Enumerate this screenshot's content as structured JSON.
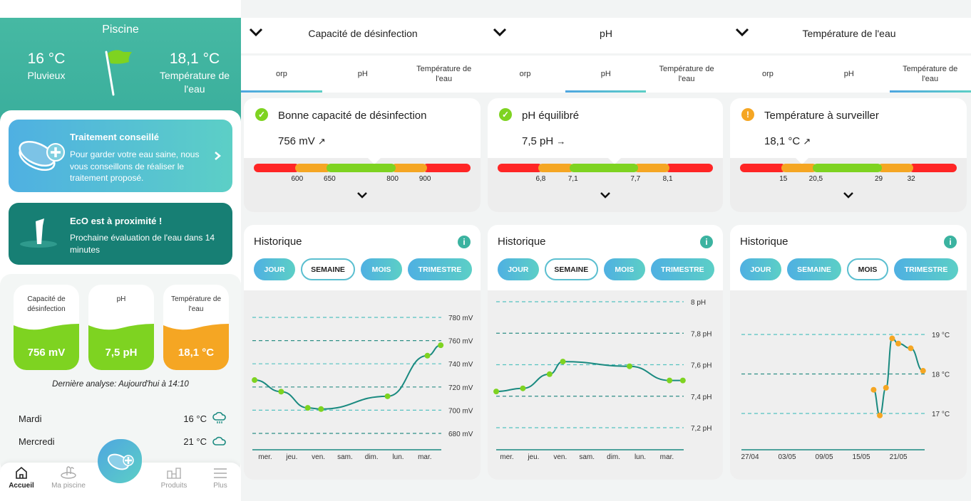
{
  "home": {
    "title": "Piscine",
    "weather_temp": "16 °C",
    "weather_desc": "Pluvieux",
    "water_temp": "18,1 °C",
    "water_temp_label": "Température de l'eau",
    "treatment": {
      "title": "Traitement conseillé",
      "text": "Pour garder votre eau saine, nous vous conseillons de réaliser le traitement proposé."
    },
    "eco": {
      "title": "EcO est à proximité !",
      "text": "Prochaine évaluation de l'eau dans 14 minutes"
    },
    "tiles": [
      {
        "label": "Capacité de désinfection",
        "value": "756 mV",
        "color": "#7ed321"
      },
      {
        "label": "pH",
        "value": "7,5 pH",
        "color": "#7ed321"
      },
      {
        "label": "Température de l'eau",
        "value": "18,1 °C",
        "color": "#f5a623"
      }
    ],
    "last_analysis": "Dernière analyse: Aujourd'hui à 14:10",
    "forecast": [
      {
        "day": "Mardi",
        "temp": "16 °C",
        "icon": "rain-cloud-icon"
      },
      {
        "day": "Mercredi",
        "temp": "21 °C",
        "icon": "cloud-icon"
      }
    ],
    "nav": [
      {
        "label": "Accueil",
        "icon": "home-icon",
        "active": true
      },
      {
        "label": "Ma piscine",
        "icon": "pool-icon",
        "active": false
      },
      {
        "label": "Produits",
        "icon": "products-icon",
        "active": false
      },
      {
        "label": "Plus",
        "icon": "menu-icon",
        "active": false
      }
    ]
  },
  "tabs": [
    "orp",
    "pH",
    "Température de l'eau"
  ],
  "history_title": "Historique",
  "periods": [
    "JOUR",
    "SEMAINE",
    "MOIS",
    "TRIMESTRE"
  ],
  "colors": {
    "red": "#ff2525",
    "orange": "#f5a623",
    "green": "#7ed321",
    "teal": "#1a8a80",
    "accent": "#4fb0e2"
  },
  "panels": [
    {
      "title": "Capacité de désinfection",
      "active_tab": 0,
      "status": "Bonne capacité de désinfection",
      "status_kind": "ok",
      "value": "756 mV",
      "trend": "↗",
      "gauge_value": 756,
      "thresholds": [
        "600",
        "650",
        "800",
        "900"
      ],
      "threshold_values": [
        600,
        650,
        800,
        900
      ],
      "selected_period": 1
    },
    {
      "title": "pH",
      "active_tab": 1,
      "status": "pH équilibré",
      "status_kind": "ok",
      "value": "7,5 pH",
      "trend": "→",
      "gauge_value": 7.5,
      "thresholds": [
        "6,8",
        "7,1",
        "7,7",
        "8,1"
      ],
      "threshold_values": [
        6.8,
        7.1,
        7.7,
        8.1
      ],
      "selected_period": 1
    },
    {
      "title": "Température de l'eau",
      "active_tab": 2,
      "status": "Température à surveiller",
      "status_kind": "warning",
      "value": "18,1 °C",
      "trend": "↗",
      "gauge_value": 18.1,
      "thresholds": [
        "15",
        "20,5",
        "29",
        "32"
      ],
      "threshold_values": [
        15,
        20.5,
        29,
        32
      ],
      "selected_period": 2
    }
  ],
  "chart_data": [
    {
      "type": "line",
      "unit": "mV",
      "ylim": [
        680,
        780
      ],
      "yticks": [
        "780 mV",
        "760 mV",
        "740 mV",
        "720 mV",
        "700 mV",
        "680 mV"
      ],
      "ytick_values": [
        780,
        760,
        740,
        720,
        700,
        680
      ],
      "categories": [
        "mer.",
        "jeu.",
        "ven.",
        "sam.",
        "dim.",
        "lun.",
        "mar."
      ],
      "x": [
        -0.4,
        0.6,
        1.6,
        2.1,
        4.6,
        6.1,
        6.6
      ],
      "values": [
        726,
        716,
        702,
        701,
        712,
        747,
        756
      ],
      "marker_color": "#7ed321",
      "grid": true
    },
    {
      "type": "line",
      "unit": "pH",
      "ylim": [
        7.2,
        8
      ],
      "yticks": [
        "8 pH",
        "7,8 pH",
        "7,6 pH",
        "7,4 pH",
        "7,2 pH"
      ],
      "ytick_values": [
        8,
        7.8,
        7.6,
        7.4,
        7.2
      ],
      "categories": [
        "mer.",
        "jeu.",
        "ven.",
        "sam.",
        "dim.",
        "lun.",
        "mar."
      ],
      "x": [
        -0.4,
        0.6,
        1.6,
        2.1,
        4.6,
        6.1,
        6.6
      ],
      "values": [
        7.43,
        7.45,
        7.54,
        7.62,
        7.59,
        7.5,
        7.5
      ],
      "marker_color": "#7ed321",
      "grid": true
    },
    {
      "type": "line",
      "unit": "°C",
      "ylim": [
        17,
        19
      ],
      "yticks": [
        "19 °C",
        "18 °C",
        "17 °C"
      ],
      "ytick_values": [
        19,
        18,
        17
      ],
      "categories": [
        "27/04",
        "03/05",
        "09/05",
        "15/05",
        "21/05"
      ],
      "x": [
        "17/05",
        "18/05",
        "19/05",
        "20/05",
        "21/05",
        "23/05",
        "25/05"
      ],
      "values": [
        17.6,
        16.95,
        17.65,
        18.9,
        18.77,
        18.65,
        18.08
      ],
      "marker_color": "#f5a623",
      "grid": true
    }
  ]
}
